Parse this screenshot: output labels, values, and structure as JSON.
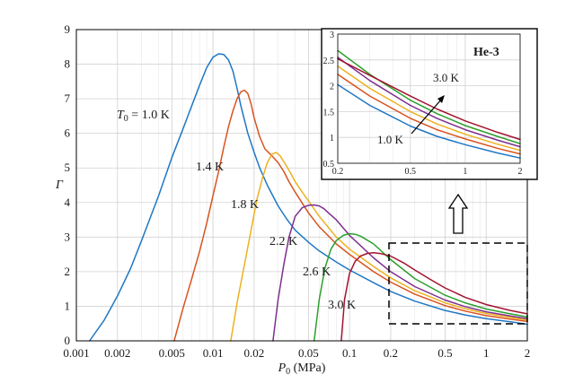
{
  "chart_data": [
    {
      "type": "line",
      "title": "",
      "xlabel": "P",
      "xlabel_sub": "0",
      "xlabel_unit": " (MPa)",
      "ylabel": "Γ",
      "xscale": "log",
      "xlim": [
        0.001,
        2
      ],
      "ylim": [
        0,
        9
      ],
      "grid": true,
      "xticks": [
        {
          "v": 0.001,
          "label": "0.001"
        },
        {
          "v": 0.002,
          "label": "0.002"
        },
        {
          "v": 0.005,
          "label": "0.005"
        },
        {
          "v": 0.01,
          "label": "0.01"
        },
        {
          "v": 0.02,
          "label": "0.02"
        },
        {
          "v": 0.05,
          "label": "0.05"
        },
        {
          "v": 0.1,
          "label": "0.1"
        },
        {
          "v": 0.2,
          "label": "0.2"
        },
        {
          "v": 0.5,
          "label": "0.5"
        },
        {
          "v": 1,
          "label": "1"
        },
        {
          "v": 2,
          "label": "2"
        }
      ],
      "yticks": [
        {
          "v": 0,
          "label": "0"
        },
        {
          "v": 1,
          "label": "1"
        },
        {
          "v": 2,
          "label": "2"
        },
        {
          "v": 3,
          "label": "3"
        },
        {
          "v": 4,
          "label": "4"
        },
        {
          "v": 5,
          "label": "5"
        },
        {
          "v": 6,
          "label": "6"
        },
        {
          "v": 7,
          "label": "7"
        },
        {
          "v": 8,
          "label": "8"
        },
        {
          "v": 9,
          "label": "9"
        }
      ],
      "series": [
        {
          "color": "#1f77c4",
          "x": [
            0.00125,
            0.0016,
            0.002,
            0.0025,
            0.003,
            0.004,
            0.005,
            0.006,
            0.007,
            0.008,
            0.009,
            0.01,
            0.011,
            0.012,
            0.013,
            0.014,
            0.015,
            0.016,
            0.018,
            0.02,
            0.022,
            0.025,
            0.03,
            0.035,
            0.04,
            0.05,
            0.06,
            0.08,
            0.1,
            0.15,
            0.2,
            0.3,
            0.5,
            0.7,
            1,
            1.5,
            2
          ],
          "y": [
            0,
            0.6,
            1.3,
            2.1,
            2.9,
            4.2,
            5.3,
            6.1,
            6.8,
            7.4,
            7.9,
            8.2,
            8.3,
            8.28,
            8.12,
            7.8,
            7.3,
            6.8,
            6.0,
            5.45,
            5.0,
            4.5,
            3.9,
            3.5,
            3.2,
            2.85,
            2.6,
            2.28,
            2.05,
            1.68,
            1.43,
            1.15,
            0.88,
            0.75,
            0.64,
            0.55,
            0.48
          ]
        },
        {
          "color": "#d9531e",
          "x": [
            0.0052,
            0.006,
            0.007,
            0.008,
            0.009,
            0.01,
            0.011,
            0.012,
            0.013,
            0.014,
            0.015,
            0.016,
            0.017,
            0.018,
            0.019,
            0.02,
            0.022,
            0.024,
            0.027,
            0.03,
            0.033,
            0.036,
            0.04,
            0.05,
            0.06,
            0.08,
            0.1,
            0.15,
            0.2,
            0.3,
            0.5,
            0.7,
            1,
            1.5,
            2
          ],
          "y": [
            0,
            0.9,
            1.8,
            2.6,
            3.4,
            4.2,
            4.9,
            5.6,
            6.2,
            6.65,
            7.0,
            7.2,
            7.25,
            7.15,
            6.85,
            6.45,
            5.9,
            5.55,
            5.35,
            5.15,
            4.9,
            4.6,
            4.3,
            3.7,
            3.3,
            2.8,
            2.5,
            2.0,
            1.7,
            1.35,
            1.02,
            0.86,
            0.73,
            0.63,
            0.56
          ]
        },
        {
          "color": "#edb120",
          "x": [
            0.0135,
            0.015,
            0.017,
            0.019,
            0.021,
            0.023,
            0.025,
            0.027,
            0.029,
            0.031,
            0.034,
            0.037,
            0.04,
            0.045,
            0.05,
            0.06,
            0.08,
            0.1,
            0.15,
            0.2,
            0.3,
            0.5,
            0.7,
            1,
            1.5,
            2
          ],
          "y": [
            0,
            1.1,
            2.2,
            3.2,
            4.1,
            4.7,
            5.15,
            5.4,
            5.45,
            5.35,
            5.1,
            4.85,
            4.6,
            4.3,
            4.05,
            3.6,
            3.0,
            2.65,
            2.15,
            1.82,
            1.45,
            1.1,
            0.93,
            0.79,
            0.68,
            0.6
          ]
        },
        {
          "color": "#7e2f8e",
          "x": [
            0.0275,
            0.03,
            0.033,
            0.036,
            0.04,
            0.045,
            0.05,
            0.055,
            0.06,
            0.065,
            0.07,
            0.08,
            0.1,
            0.15,
            0.2,
            0.3,
            0.5,
            0.7,
            1,
            1.5,
            2
          ],
          "y": [
            0,
            1.2,
            2.2,
            3.0,
            3.6,
            3.85,
            3.92,
            3.93,
            3.9,
            3.82,
            3.7,
            3.5,
            3.05,
            2.4,
            2.0,
            1.57,
            1.18,
            0.99,
            0.84,
            0.72,
            0.64
          ]
        },
        {
          "color": "#2ca02c",
          "x": [
            0.055,
            0.06,
            0.066,
            0.073,
            0.08,
            0.09,
            0.1,
            0.11,
            0.12,
            0.13,
            0.15,
            0.2,
            0.3,
            0.5,
            0.7,
            1,
            1.5,
            2
          ],
          "y": [
            0,
            1.2,
            2.1,
            2.65,
            2.9,
            3.05,
            3.1,
            3.08,
            3.03,
            2.95,
            2.8,
            2.35,
            1.8,
            1.32,
            1.1,
            0.92,
            0.78,
            0.69
          ]
        },
        {
          "color": "#a2142f",
          "x": [
            0.087,
            0.092,
            0.1,
            0.11,
            0.12,
            0.135,
            0.15,
            0.17,
            0.2,
            0.25,
            0.3,
            0.4,
            0.5,
            0.7,
            1,
            1.5,
            2
          ],
          "y": [
            0,
            1.2,
            1.95,
            2.3,
            2.45,
            2.53,
            2.55,
            2.52,
            2.45,
            2.25,
            2.05,
            1.75,
            1.53,
            1.26,
            1.05,
            0.88,
            0.78
          ]
        }
      ],
      "curve_labels": [
        {
          "text": "T",
          "sub": "0",
          "rest": " = 1.0 K"
        },
        {
          "text": "1.4 K"
        },
        {
          "text": "1.8 K"
        },
        {
          "text": "2.2 K"
        },
        {
          "text": "2.6 K"
        },
        {
          "text": "3.0 K"
        }
      ],
      "annotations": [
        {
          "type": "dashed-rectangle",
          "x_range": [
            0.2,
            2
          ],
          "y_range": [
            0.5,
            2.8
          ]
        },
        {
          "type": "hollow-arrow",
          "direction": "up"
        }
      ]
    },
    {
      "type": "line",
      "title": "He-3",
      "xscale": "log",
      "xlim": [
        0.2,
        2
      ],
      "ylim": [
        0.5,
        3
      ],
      "grid": true,
      "xticks": [
        {
          "v": 0.2,
          "label": "0.2"
        },
        {
          "v": 0.5,
          "label": "0.5"
        },
        {
          "v": 1,
          "label": "1"
        },
        {
          "v": 2,
          "label": "2"
        }
      ],
      "yticks": [
        {
          "v": 0.5,
          "label": "0.5"
        },
        {
          "v": 1,
          "label": "1"
        },
        {
          "v": 1.5,
          "label": "1.5"
        },
        {
          "v": 2,
          "label": "2"
        },
        {
          "v": 2.5,
          "label": "2.5"
        },
        {
          "v": 3,
          "label": "3"
        }
      ],
      "series": [
        {
          "color": "#1f77c4",
          "x": [
            0.2,
            0.3,
            0.5,
            0.7,
            1,
            1.5,
            2
          ],
          "y": [
            2.02,
            1.62,
            1.22,
            1.02,
            0.86,
            0.7,
            0.6
          ]
        },
        {
          "color": "#d9531e",
          "x": [
            0.2,
            0.3,
            0.5,
            0.7,
            1,
            1.5,
            2
          ],
          "y": [
            2.22,
            1.8,
            1.37,
            1.15,
            0.97,
            0.79,
            0.68
          ]
        },
        {
          "color": "#edb120",
          "x": [
            0.2,
            0.3,
            0.5,
            0.7,
            1,
            1.5,
            2
          ],
          "y": [
            2.38,
            1.95,
            1.5,
            1.26,
            1.06,
            0.87,
            0.75
          ]
        },
        {
          "color": "#7e2f8e",
          "x": [
            0.2,
            0.3,
            0.5,
            0.7,
            1,
            1.5,
            2
          ],
          "y": [
            2.55,
            2.1,
            1.62,
            1.37,
            1.15,
            0.95,
            0.82
          ]
        },
        {
          "color": "#2ca02c",
          "x": [
            0.2,
            0.3,
            0.5,
            0.7,
            1,
            1.5,
            2
          ],
          "y": [
            2.68,
            2.22,
            1.72,
            1.46,
            1.23,
            1.02,
            0.88
          ]
        },
        {
          "color": "#a2142f",
          "x": [
            0.2,
            0.3,
            0.5,
            0.7,
            1,
            1.5,
            2
          ],
          "y": [
            2.52,
            2.2,
            1.8,
            1.55,
            1.32,
            1.1,
            0.96
          ]
        }
      ],
      "labels": [
        {
          "text": "3.0 K"
        },
        {
          "text": "1.0 K"
        }
      ]
    }
  ]
}
